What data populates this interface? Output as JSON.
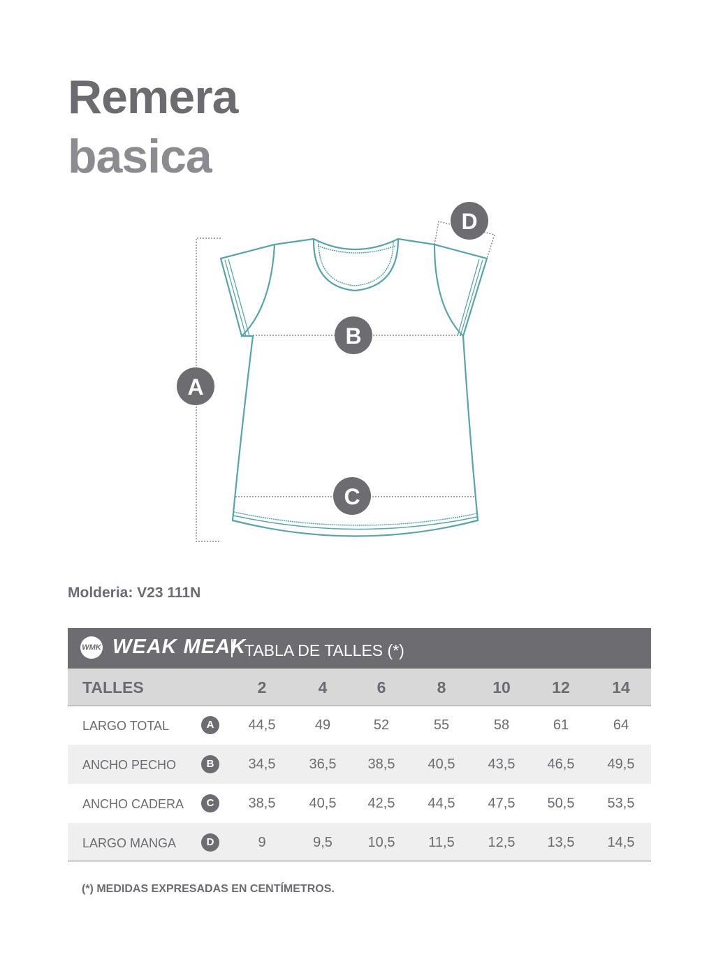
{
  "title": {
    "line1": "Remera",
    "line2": "basica"
  },
  "diagram": {
    "markers": [
      "A",
      "B",
      "C",
      "D"
    ],
    "garment_color": "#5aa3a8",
    "marker_color": "#6d6c71"
  },
  "molderia": "Molderia: V23 111N",
  "table": {
    "brand": "WEAK MEAK",
    "logo_text": "WMK",
    "title": "TABLA DE TALLES (*)",
    "header_label": "TALLES",
    "sizes": [
      "2",
      "4",
      "6",
      "8",
      "10",
      "12",
      "14"
    ],
    "rows": [
      {
        "label": "LARGO TOTAL",
        "marker": "A",
        "values": [
          "44,5",
          "49",
          "52",
          "55",
          "58",
          "61",
          "64"
        ]
      },
      {
        "label": "ANCHO PECHO",
        "marker": "B",
        "values": [
          "34,5",
          "36,5",
          "38,5",
          "40,5",
          "43,5",
          "46,5",
          "49,5"
        ]
      },
      {
        "label": "ANCHO CADERA",
        "marker": "C",
        "values": [
          "38,5",
          "40,5",
          "42,5",
          "44,5",
          "47,5",
          "50,5",
          "53,5"
        ]
      },
      {
        "label": "LARGO MANGA",
        "marker": "D",
        "values": [
          "9",
          "9,5",
          "10,5",
          "11,5",
          "12,5",
          "13,5",
          "14,5"
        ]
      }
    ],
    "header_color": "#6d6c71"
  },
  "note": "(*) MEDIDAS EXPRESADAS EN CENTÍMETROS."
}
